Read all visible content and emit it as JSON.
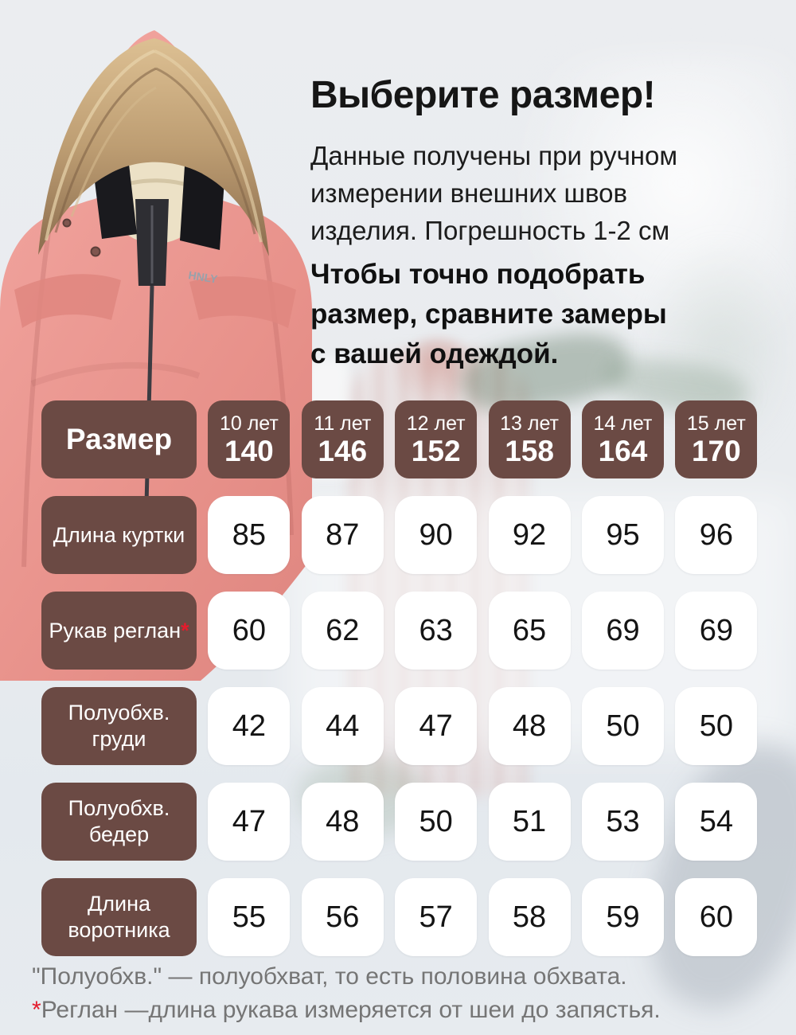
{
  "header": {
    "title": "Выберите размер!",
    "intro_lines": [
      "Данные получены при ручном",
      "измерении внешних швов",
      "изделия. Погрешность 1-2 см"
    ],
    "emphasis_lines": [
      "Чтобы точно подобрать",
      "размер, сравните замеры",
      "с вашей одеждой."
    ]
  },
  "jacket": {
    "brand_label": "HNLY"
  },
  "table": {
    "corner_label": "Размер",
    "columns": [
      {
        "age": "10 лет",
        "size": "140"
      },
      {
        "age": "11 лет",
        "size": "146"
      },
      {
        "age": "12 лет",
        "size": "152"
      },
      {
        "age": "13 лет",
        "size": "158"
      },
      {
        "age": "14 лет",
        "size": "164"
      },
      {
        "age": "15 лет",
        "size": "170"
      }
    ],
    "rows": [
      {
        "label": "Длина куртки",
        "asterisk": false,
        "values": [
          "85",
          "87",
          "90",
          "92",
          "95",
          "96"
        ]
      },
      {
        "label": "Рукав реглан",
        "asterisk": true,
        "values": [
          "60",
          "62",
          "63",
          "65",
          "69",
          "69"
        ]
      },
      {
        "label": "Полуобхв. груди",
        "asterisk": false,
        "values": [
          "42",
          "44",
          "47",
          "48",
          "50",
          "50"
        ]
      },
      {
        "label": "Полуобхв. бедер",
        "asterisk": false,
        "values": [
          "47",
          "48",
          "50",
          "51",
          "53",
          "54"
        ]
      },
      {
        "label": "Длина воротника",
        "asterisk": false,
        "values": [
          "55",
          "56",
          "57",
          "58",
          "59",
          "60"
        ]
      }
    ]
  },
  "footnotes": [
    {
      "marker": "",
      "text": "\"Полуобхв.\" — полуобхват, то есть половина обхвата."
    },
    {
      "marker": "*",
      "text": "Реглан —длина рукава измеряется от шеи до запястья."
    }
  ],
  "colors": {
    "cell_brown": "#6B4A44",
    "cell_white": "#FFFFFF",
    "asterisk_red": "#E41B2C",
    "text_black": "#151515",
    "footnote_gray": "#757575",
    "jacket_pink": "#E8928B",
    "fur_tan": "#C2A479"
  }
}
